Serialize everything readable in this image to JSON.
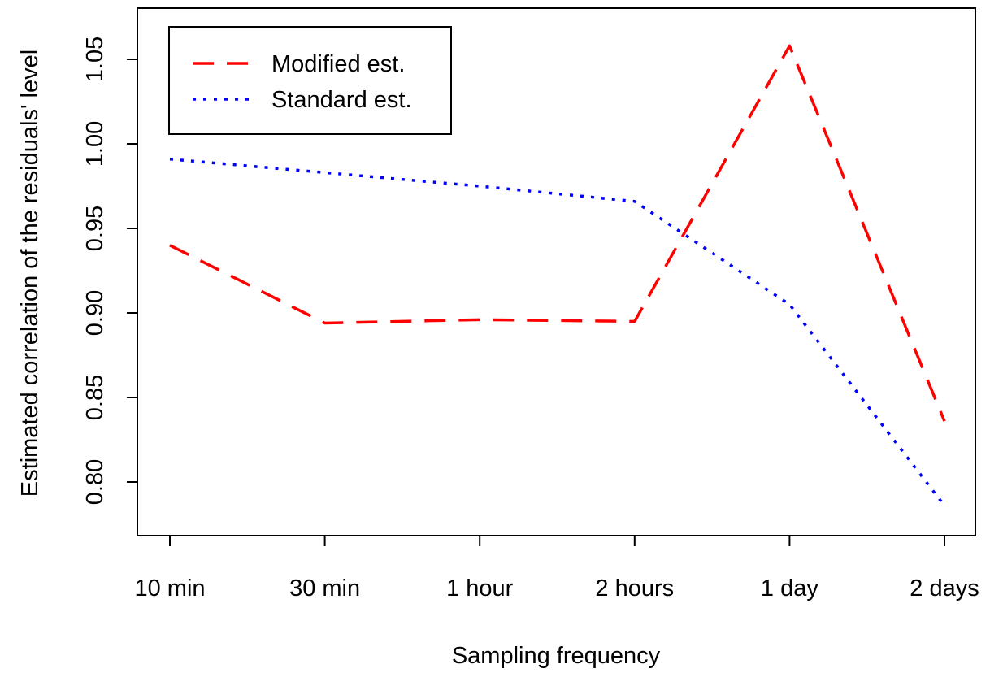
{
  "chart_data": {
    "type": "line",
    "title": "",
    "xlabel": "Sampling frequency",
    "ylabel": "Estimated correlation of the residuals' level",
    "categories": [
      "10 min",
      "30 min",
      "1 hour",
      "2 hours",
      "1 day",
      "2 days"
    ],
    "ylim": [
      0.77,
      1.08
    ],
    "yticks": [
      "0.80",
      "0.85",
      "0.90",
      "0.95",
      "1.00",
      "1.05"
    ],
    "grid": false,
    "legend_position": "top-left",
    "series": [
      {
        "name": "Modified est.",
        "color": "#ff0000",
        "dash": "dashed",
        "values": [
          0.94,
          0.894,
          0.896,
          0.895,
          1.058,
          0.836
        ]
      },
      {
        "name": "Standard est.",
        "color": "#0000ff",
        "dash": "dotted",
        "values": [
          0.991,
          0.983,
          0.975,
          0.966,
          0.905,
          0.786
        ]
      }
    ]
  }
}
